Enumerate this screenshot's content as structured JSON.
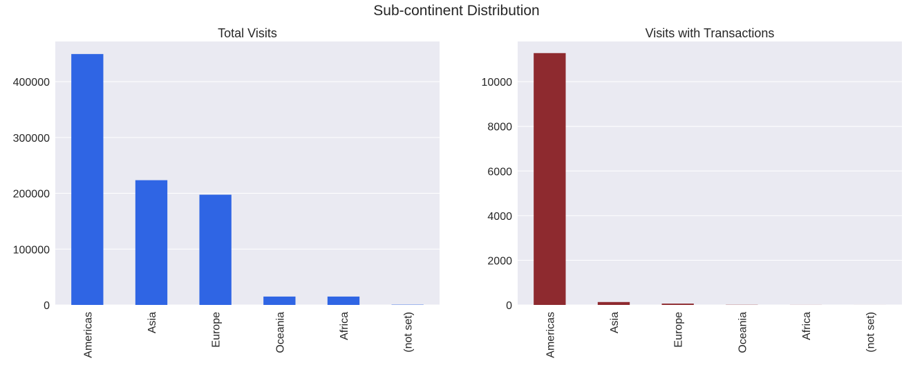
{
  "figure": {
    "title": "Sub-continent Distribution"
  },
  "colors": {
    "plot_background": "#eaeaf2",
    "grid": "#ffffff",
    "left_bar": "#2f65e4",
    "right_bar": "#8e2a2f"
  },
  "chart_data": [
    {
      "type": "bar",
      "title": "Total Visits",
      "categories": [
        "Americas",
        "Asia",
        "Europe",
        "Oceania",
        "Africa",
        "(not set)"
      ],
      "values": [
        449500,
        223500,
        197500,
        15000,
        15000,
        500
      ],
      "ylim": [
        0,
        472000
      ],
      "yticks": [
        0,
        100000,
        200000,
        300000,
        400000
      ],
      "xlabel": "",
      "ylabel": "",
      "grid": true
    },
    {
      "type": "bar",
      "title": "Visits with Transactions",
      "categories": [
        "Americas",
        "Asia",
        "Europe",
        "Oceania",
        "Africa",
        "(not set)"
      ],
      "values": [
        11280,
        130,
        60,
        8,
        3,
        1
      ],
      "ylim": [
        0,
        11800
      ],
      "yticks": [
        0,
        2000,
        4000,
        6000,
        8000,
        10000
      ],
      "xlabel": "",
      "ylabel": "",
      "grid": true
    }
  ]
}
